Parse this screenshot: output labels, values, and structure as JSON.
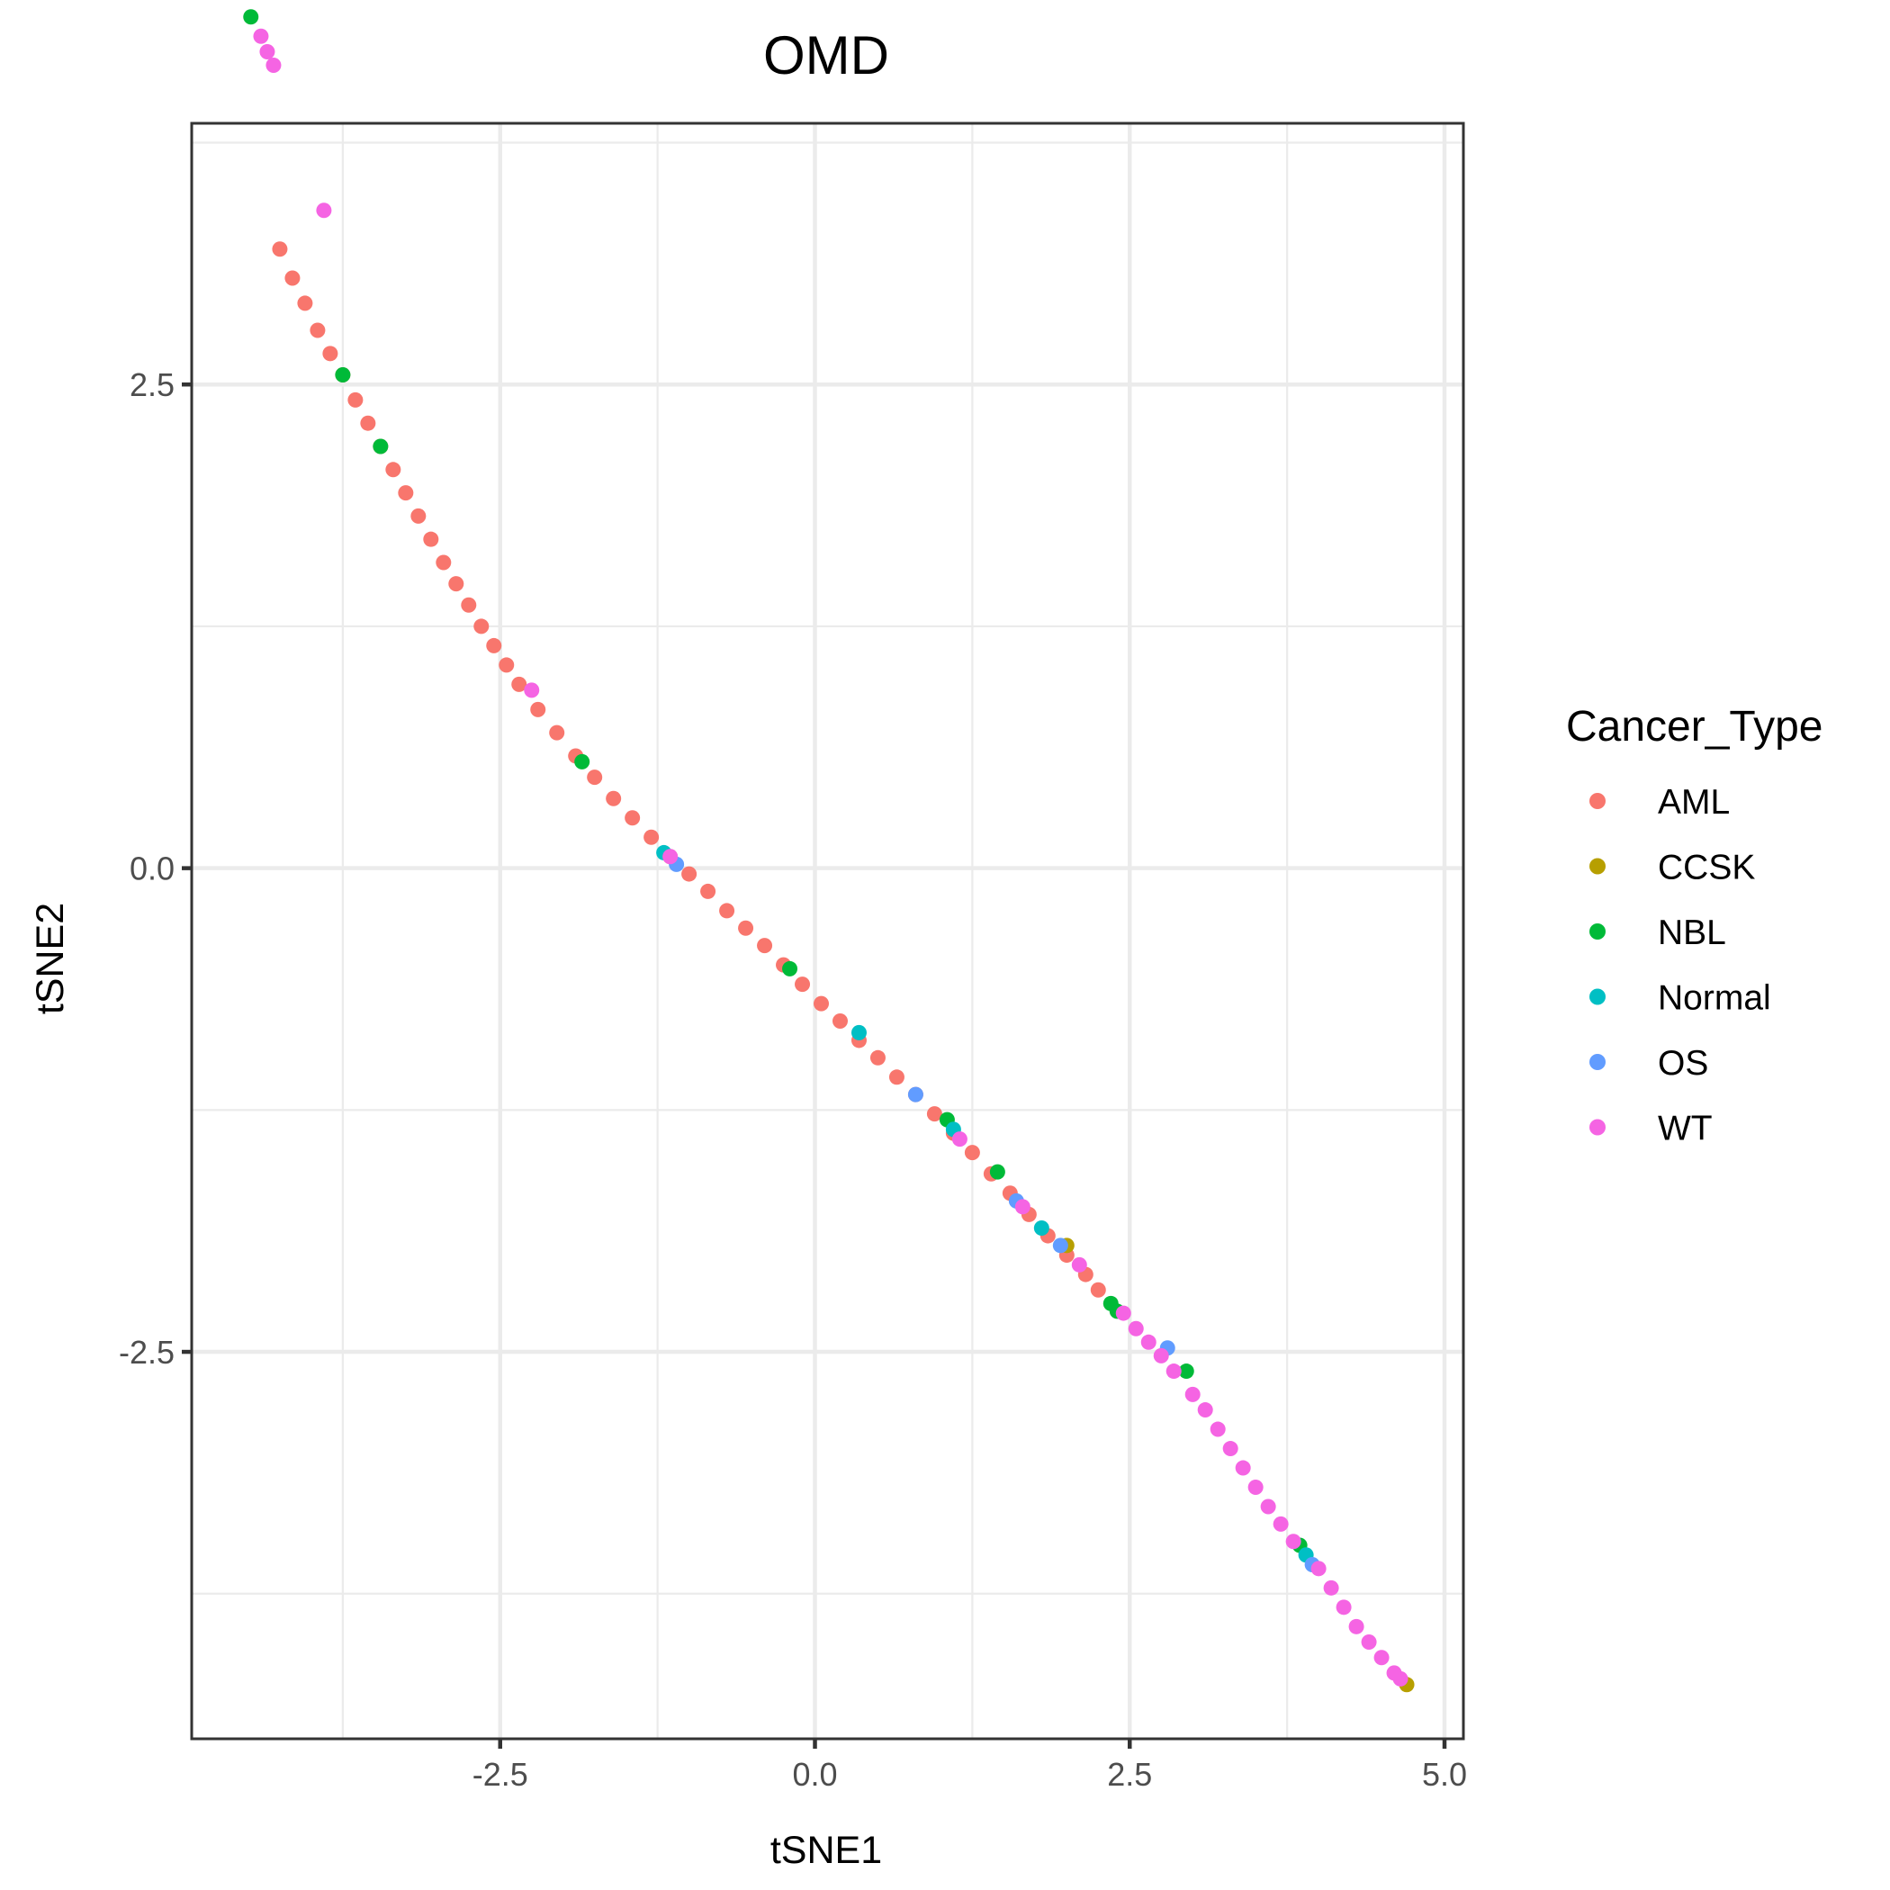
{
  "chart_data": {
    "type": "scatter",
    "title": "OMD",
    "xlabel": "tSNE1",
    "ylabel": "tSNE2",
    "xlim": [
      -4.95,
      5.15
    ],
    "ylim": [
      -4.5,
      3.85
    ],
    "x_ticks": [
      -2.5,
      0.0,
      2.5,
      5.0
    ],
    "y_ticks": [
      2.5,
      0.0,
      -2.5
    ],
    "x_tick_labels": [
      "-2.5",
      "0.0",
      "2.5",
      "5.0"
    ],
    "y_tick_labels": [
      "2.5",
      "0.0",
      "-2.5"
    ],
    "grid": true,
    "legend": {
      "title": "Cancer_Type",
      "position": "right",
      "entries": [
        {
          "label": "AML",
          "color": "#F8766D"
        },
        {
          "label": "CCSK",
          "color": "#B79F00"
        },
        {
          "label": "NBL",
          "color": "#00BA38"
        },
        {
          "label": "Normal",
          "color": "#00BFC4"
        },
        {
          "label": "OS",
          "color": "#619CFF"
        },
        {
          "label": "WT",
          "color": "#F564E3"
        }
      ]
    },
    "series": [
      {
        "name": "AML",
        "color": "#F8766D",
        "points": [
          [
            -4.25,
            3.2
          ],
          [
            -4.15,
            3.05
          ],
          [
            -4.05,
            2.92
          ],
          [
            -3.95,
            2.78
          ],
          [
            -3.85,
            2.66
          ],
          [
            -3.75,
            2.55
          ],
          [
            -3.65,
            2.42
          ],
          [
            -3.55,
            2.3
          ],
          [
            -3.45,
            2.18
          ],
          [
            -3.35,
            2.06
          ],
          [
            -3.25,
            1.94
          ],
          [
            -3.15,
            1.82
          ],
          [
            -3.05,
            1.7
          ],
          [
            -2.95,
            1.58
          ],
          [
            -2.85,
            1.47
          ],
          [
            -2.75,
            1.36
          ],
          [
            -2.65,
            1.25
          ],
          [
            -2.55,
            1.15
          ],
          [
            -2.45,
            1.05
          ],
          [
            -2.35,
            0.95
          ],
          [
            -2.2,
            0.82
          ],
          [
            -2.05,
            0.7
          ],
          [
            -1.9,
            0.58
          ],
          [
            -1.75,
            0.47
          ],
          [
            -1.6,
            0.36
          ],
          [
            -1.45,
            0.26
          ],
          [
            -1.3,
            0.16
          ],
          [
            -1.15,
            0.06
          ],
          [
            -1.0,
            -0.03
          ],
          [
            -0.85,
            -0.12
          ],
          [
            -0.7,
            -0.22
          ],
          [
            -0.55,
            -0.31
          ],
          [
            -0.4,
            -0.4
          ],
          [
            -0.25,
            -0.5
          ],
          [
            -0.1,
            -0.6
          ],
          [
            0.05,
            -0.7
          ],
          [
            0.2,
            -0.79
          ],
          [
            0.35,
            -0.89
          ],
          [
            0.5,
            -0.98
          ],
          [
            0.65,
            -1.08
          ],
          [
            0.8,
            -1.17
          ],
          [
            0.95,
            -1.27
          ],
          [
            1.1,
            -1.37
          ],
          [
            1.25,
            -1.47
          ],
          [
            1.4,
            -1.58
          ],
          [
            1.55,
            -1.68
          ],
          [
            1.7,
            -1.79
          ],
          [
            1.85,
            -1.9
          ],
          [
            2.0,
            -2.0
          ],
          [
            2.15,
            -2.1
          ],
          [
            2.25,
            -2.18
          ]
        ]
      },
      {
        "name": "CCSK",
        "color": "#B79F00",
        "points": [
          [
            2.0,
            -1.95
          ],
          [
            4.7,
            -4.22
          ]
        ]
      },
      {
        "name": "NBL",
        "color": "#00BA38",
        "points": [
          [
            -4.48,
            4.4
          ],
          [
            -3.75,
            2.55
          ],
          [
            -3.45,
            2.18
          ],
          [
            -1.85,
            0.55
          ],
          [
            -0.2,
            -0.52
          ],
          [
            1.05,
            -1.3
          ],
          [
            1.45,
            -1.57
          ],
          [
            2.35,
            -2.25
          ],
          [
            2.4,
            -2.29
          ],
          [
            2.95,
            -2.6
          ],
          [
            3.85,
            -3.5
          ]
        ]
      },
      {
        "name": "Normal",
        "color": "#00BFC4",
        "points": [
          [
            -1.2,
            0.08
          ],
          [
            0.35,
            -0.85
          ],
          [
            1.1,
            -1.35
          ],
          [
            1.8,
            -1.86
          ],
          [
            3.9,
            -3.55
          ]
        ]
      },
      {
        "name": "OS",
        "color": "#619CFF",
        "points": [
          [
            -1.1,
            0.02
          ],
          [
            0.8,
            -1.17
          ],
          [
            1.6,
            -1.72
          ],
          [
            1.95,
            -1.95
          ],
          [
            2.8,
            -2.48
          ],
          [
            3.95,
            -3.6
          ]
        ]
      },
      {
        "name": "WT",
        "color": "#F564E3",
        "points": [
          [
            -4.4,
            4.3
          ],
          [
            -4.35,
            4.22
          ],
          [
            -4.3,
            4.15
          ],
          [
            -3.9,
            3.4
          ],
          [
            -2.25,
            0.92
          ],
          [
            -1.15,
            0.06
          ],
          [
            1.15,
            -1.4
          ],
          [
            1.65,
            -1.75
          ],
          [
            2.1,
            -2.05
          ],
          [
            2.45,
            -2.3
          ],
          [
            2.55,
            -2.38
          ],
          [
            2.65,
            -2.45
          ],
          [
            2.75,
            -2.52
          ],
          [
            2.85,
            -2.6
          ],
          [
            3.0,
            -2.72
          ],
          [
            3.1,
            -2.8
          ],
          [
            3.2,
            -2.9
          ],
          [
            3.3,
            -3.0
          ],
          [
            3.4,
            -3.1
          ],
          [
            3.5,
            -3.2
          ],
          [
            3.6,
            -3.3
          ],
          [
            3.7,
            -3.39
          ],
          [
            3.8,
            -3.48
          ],
          [
            4.0,
            -3.62
          ],
          [
            4.1,
            -3.72
          ],
          [
            4.2,
            -3.82
          ],
          [
            4.3,
            -3.92
          ],
          [
            4.4,
            -4.0
          ],
          [
            4.5,
            -4.08
          ],
          [
            4.6,
            -4.16
          ],
          [
            4.65,
            -4.19
          ]
        ]
      }
    ]
  }
}
